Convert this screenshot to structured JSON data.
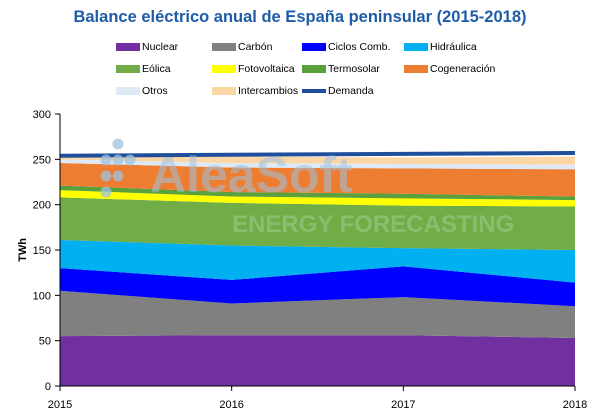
{
  "chart_data": {
    "type": "area",
    "title": "Balance eléctrico anual de España peninsular (2015-2018)",
    "xlabel": "",
    "ylabel": "TWh",
    "x": [
      "2015",
      "2016",
      "2017",
      "2018"
    ],
    "ylim": [
      0,
      300
    ],
    "yticks": [
      0,
      50,
      100,
      150,
      200,
      250,
      300
    ],
    "stacked": true,
    "series": [
      {
        "name": "Nuclear",
        "color": "#7030a0",
        "values": [
          55,
          56,
          56,
          53
        ]
      },
      {
        "name": "Carbón",
        "color": "#808080",
        "values": [
          50,
          35,
          42,
          35
        ]
      },
      {
        "name": "Ciclos Comb.",
        "color": "#0000ff",
        "values": [
          25,
          26,
          34,
          26
        ]
      },
      {
        "name": "Hidráulica",
        "color": "#00b0f0",
        "values": [
          31,
          38,
          20,
          36
        ]
      },
      {
        "name": "Eólica",
        "color": "#70ad47",
        "values": [
          47,
          47,
          47,
          48
        ]
      },
      {
        "name": "Fotovoltaica",
        "color": "#ffff00",
        "values": [
          8,
          7,
          8,
          7
        ]
      },
      {
        "name": "Termosolar",
        "color": "#5aa03c",
        "values": [
          5,
          5,
          5,
          4
        ]
      },
      {
        "name": "Cogeneración",
        "color": "#ed7d31",
        "values": [
          25,
          27,
          28,
          30
        ]
      },
      {
        "name": "Otros",
        "color": "#dde9f6",
        "values": [
          4,
          5,
          5,
          5
        ]
      },
      {
        "name": "Intercambios",
        "color": "#fcd5a5",
        "values": [
          2,
          7,
          7,
          9
        ]
      }
    ],
    "line": {
      "name": "Demanda",
      "color": "#1f4e9a",
      "values": [
        254,
        255,
        256,
        257
      ]
    },
    "legend_position": "top",
    "grid": false
  },
  "watermark": {
    "brand": "AleaSoft",
    "tagline": "ENERGY FORECASTING",
    "color": "#9fc2e0",
    "tagline_color": "#93c47d"
  }
}
